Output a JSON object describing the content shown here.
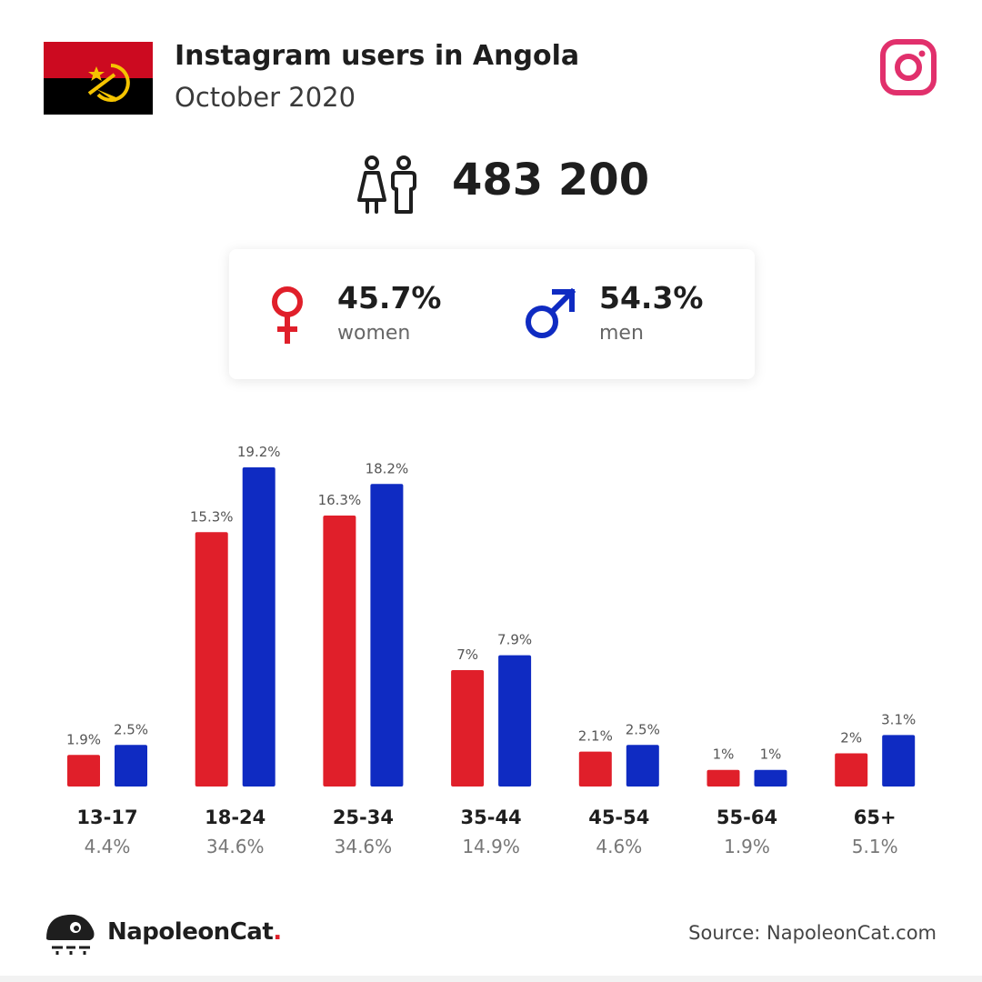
{
  "header": {
    "title": "Instagram users in Angola",
    "subtitle": "October 2020"
  },
  "icons": {
    "flag": "angola-flag-icon",
    "platform": "instagram-icon",
    "users": "people-icon",
    "female": "female-symbol-icon",
    "male": "male-symbol-icon",
    "brand_logo": "napoleoncat-logo-icon"
  },
  "summary": {
    "total_users": "483 200",
    "women_pct": "45.7%",
    "women_label": "women",
    "men_pct": "54.3%",
    "men_label": "men"
  },
  "colors": {
    "women": "#e01f2a",
    "men": "#0f2bc2",
    "instagram": "#e1306c",
    "flag_red": "#cc0a20",
    "flag_black": "#000000",
    "flag_emblem": "#f5c400"
  },
  "chart_data": {
    "type": "bar",
    "categories": [
      "13-17",
      "18-24",
      "25-34",
      "35-44",
      "45-54",
      "55-64",
      "65+"
    ],
    "category_totals": [
      "4.4%",
      "34.6%",
      "34.6%",
      "14.9%",
      "4.6%",
      "1.9%",
      "5.1%"
    ],
    "series": [
      {
        "values": [
          1.9,
          15.3,
          16.3,
          7,
          2.1,
          1,
          2
        ],
        "labels": [
          "1.9%",
          "15.3%",
          "16.3%",
          "7%",
          "2.1%",
          "1%",
          "2%"
        ],
        "color": "#e01f2a"
      },
      {
        "values": [
          2.5,
          19.2,
          18.2,
          7.9,
          2.5,
          1,
          3.1
        ],
        "labels": [
          "2.5%",
          "19.2%",
          "18.2%",
          "7.9%",
          "2.5%",
          "1%",
          "3.1%"
        ],
        "color": "#0f2bc2"
      }
    ],
    "ylim": [
      0,
      19.2
    ],
    "grid": false,
    "legend": "none"
  },
  "footer": {
    "brand_name": "NapoleonCat",
    "brand_dot": ".",
    "source": "Source: NapoleonCat.com"
  }
}
